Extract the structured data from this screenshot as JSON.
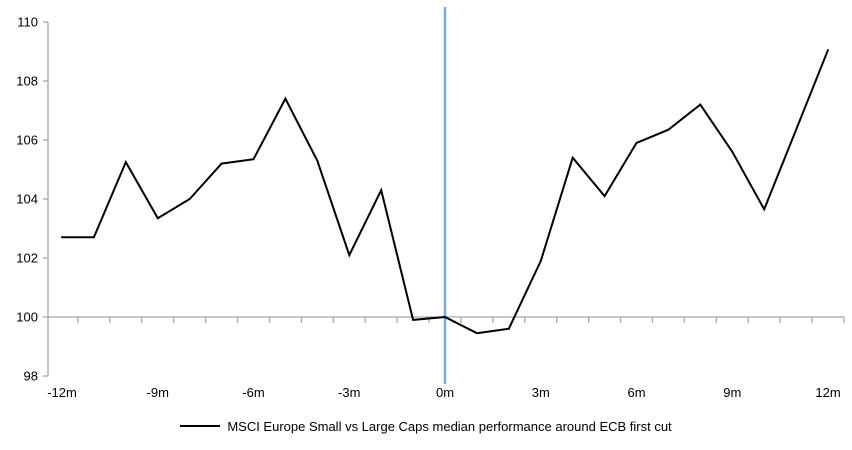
{
  "chart_data": {
    "type": "line",
    "title": "",
    "xlabel": "",
    "ylabel": "",
    "x_months": [
      -12,
      -11,
      -10,
      -9,
      -8,
      -7,
      -6,
      -5,
      -4,
      -3,
      -2,
      -1,
      0,
      1,
      2,
      3,
      4,
      5,
      6,
      7,
      8,
      9,
      10,
      11,
      12
    ],
    "series": [
      {
        "name": "MSCI Europe Small vs Large Caps median performance around ECB first cut",
        "color": "#000000",
        "values": [
          102.7,
          102.7,
          105.25,
          103.35,
          104.0,
          105.2,
          105.35,
          107.4,
          105.3,
          102.1,
          104.3,
          99.9,
          100.0,
          99.45,
          99.6,
          101.9,
          105.4,
          104.1,
          105.9,
          106.35,
          107.2,
          105.6,
          103.65,
          106.35,
          109.05
        ]
      }
    ],
    "y_axis": {
      "min": 98,
      "max": 110,
      "tick_step": 2,
      "ticks": [
        98,
        100,
        102,
        104,
        106,
        108,
        110
      ]
    },
    "x_axis": {
      "tick_months": [
        -12,
        -9,
        -6,
        -3,
        0,
        3,
        6,
        9,
        12
      ],
      "tick_labels": [
        "-12m",
        "-9m",
        "-6m",
        "-3m",
        "0m",
        "3m",
        "6m",
        "9m",
        "12m"
      ],
      "minor_ticks_every_month": true
    },
    "baseline_value": 100,
    "event_line": {
      "at_month": 0,
      "color": "#7AA7D0"
    },
    "colors": {
      "axis": "#A6A6A6",
      "line": "#000000",
      "background": "#FFFFFF"
    },
    "grid": "baseline-only",
    "legend_position": "bottom",
    "legend_label": "MSCI Europe Small vs Large Caps median performance around ECB first cut"
  }
}
